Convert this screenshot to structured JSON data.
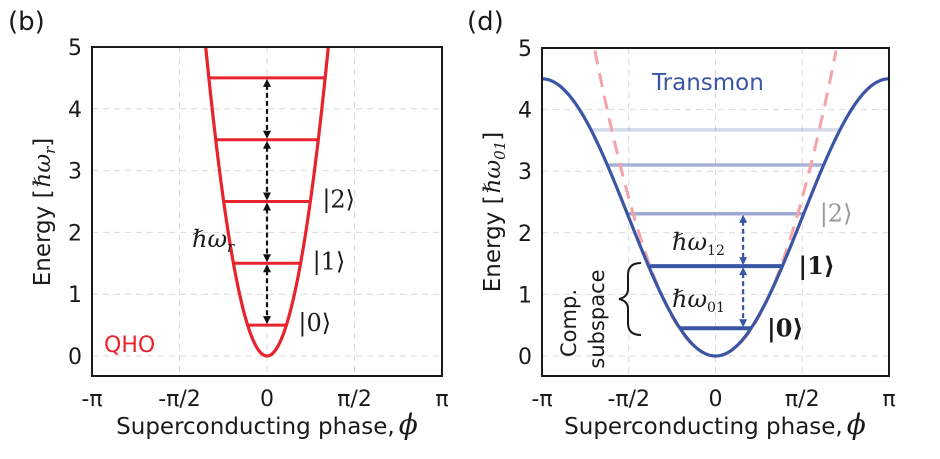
{
  "chart_data": [
    {
      "type": "line",
      "panel_label": "(b)",
      "title": "",
      "xlabel": "Superconducting phase,",
      "xlabel_symbol": "ϕ",
      "ylabel": "Energy [",
      "ylabel_unit": "ℏω",
      "ylabel_unit_sub": "r",
      "ylabel_close": "]",
      "xlim": [
        -3.14159,
        3.14159
      ],
      "ylim": [
        0,
        5
      ],
      "xticks": [
        -3.14159,
        -1.5708,
        0,
        1.5708,
        3.14159
      ],
      "xtick_labels": [
        "-π",
        "-π/2",
        "0",
        "π/2",
        "π"
      ],
      "yticks": [
        0,
        1,
        2,
        3,
        4,
        5
      ],
      "ytick_labels": [
        "0",
        "1",
        "2",
        "3",
        "4",
        "5"
      ],
      "grid": true,
      "potential": {
        "name": "QHO",
        "form": "E = a*phi^2",
        "a": 4.13,
        "color": "#e8232b"
      },
      "levels": [
        0.5,
        1.5,
        2.5,
        3.5,
        4.5
      ],
      "level_labels": [
        {
          "level": 0,
          "text": "|0⟩"
        },
        {
          "level": 1,
          "text": "|1⟩"
        },
        {
          "level": 2,
          "text": "|2⟩"
        }
      ],
      "spacing_annotation": {
        "text": "ℏω",
        "sub": "r"
      },
      "model_label": "QHO",
      "colors": {
        "potential": "#e8232b",
        "arrows": "#111111",
        "grid": "#d9d9d9"
      }
    },
    {
      "type": "line",
      "panel_label": "(d)",
      "title": "",
      "xlabel": "Superconducting phase,",
      "xlabel_symbol": "ϕ",
      "ylabel": "Energy [",
      "ylabel_unit": "ℏω",
      "ylabel_unit_sub": "01",
      "ylabel_close": "]",
      "xlim": [
        -3.14159,
        3.14159
      ],
      "ylim": [
        0,
        5
      ],
      "xticks": [
        -3.14159,
        -1.5708,
        0,
        1.5708,
        3.14159
      ],
      "xtick_labels": [
        "-π",
        "-π/2",
        "0",
        "π/2",
        "π"
      ],
      "yticks": [
        0,
        1,
        2,
        3,
        4,
        5
      ],
      "ytick_labels": [
        "0",
        "1",
        "2",
        "3",
        "4",
        "5"
      ],
      "grid": true,
      "potential": {
        "name": "Transmon",
        "form": "E = A*(1 - cos(phi))",
        "A": 2.25,
        "color": "#3b55a5"
      },
      "reference_potential": {
        "name": "QHO (dashed)",
        "form": "E = a*phi^2",
        "a": 1.04,
        "color": "#f5a3a8"
      },
      "levels": [
        0.45,
        1.46,
        2.31,
        3.1,
        3.67
      ],
      "level_opacity": [
        1.0,
        1.0,
        0.5,
        0.45,
        0.22
      ],
      "level_labels": [
        {
          "level": 0,
          "text": "|0⟩",
          "bold": true
        },
        {
          "level": 1,
          "text": "|1⟩",
          "bold": true
        },
        {
          "level": 2,
          "text": "|2⟩",
          "bold": false
        }
      ],
      "annotations": [
        {
          "text": "ℏω",
          "sub": "12"
        },
        {
          "text": "ℏω",
          "sub": "01"
        }
      ],
      "model_label": "Transmon",
      "subspace_label": [
        "Comp.",
        "subspace"
      ],
      "colors": {
        "potential": "#3b55a5",
        "reference": "#f5a3a8",
        "level_label_faded": "#999999",
        "grid": "#d9d9d9"
      }
    }
  ]
}
